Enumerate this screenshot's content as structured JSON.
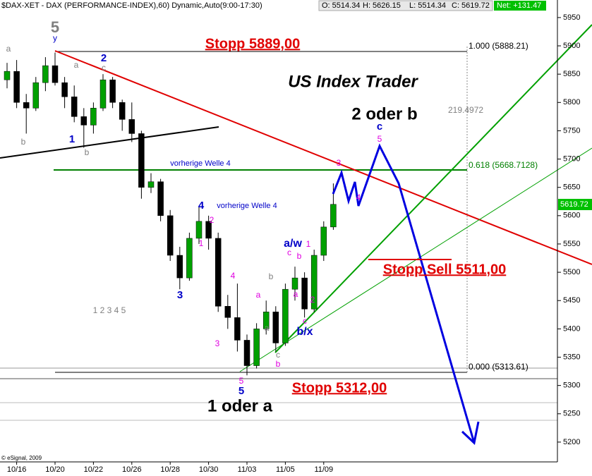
{
  "chart_data": {
    "type": "candlestick",
    "title": "$DAX-XET - DAX (PERFORMANCE-INDEX),60) Dynamic,Auto(9:00-17:30)",
    "header": {
      "open": "O: 5514.34",
      "high": "H: 5626.15",
      "low": "L: 5514.34",
      "close": "C: 5619.72",
      "net": "Net: +131.47"
    },
    "categories": [
      null,
      "10/16",
      null,
      null,
      null,
      "10/20",
      null,
      null,
      null,
      "10/22",
      null,
      null,
      null,
      "10/26",
      null,
      null,
      null,
      "10/28",
      null,
      null,
      null,
      "10/30",
      null,
      null,
      null,
      "11/03",
      null,
      null,
      null,
      "11/05",
      null,
      null,
      null,
      "11/09",
      null
    ],
    "open": [
      5840,
      5855,
      5800,
      5790,
      5835,
      5865,
      5835,
      5810,
      5775,
      5760,
      5790,
      5840,
      5800,
      5770,
      5745,
      5650,
      5660,
      5600,
      5530,
      5490,
      5560,
      5590,
      5560,
      5440,
      5420,
      5380,
      5335,
      5400,
      5430,
      5375,
      5470,
      5490,
      5435,
      5530,
      5580
    ],
    "high": [
      5870,
      5875,
      5815,
      5845,
      5880,
      5888,
      5845,
      5830,
      5790,
      5800,
      5850,
      5845,
      5805,
      5800,
      5750,
      5675,
      5665,
      5610,
      5545,
      5570,
      5615,
      5600,
      5570,
      5460,
      5480,
      5390,
      5410,
      5450,
      5440,
      5480,
      5510,
      5500,
      5540,
      5590,
      5657
    ],
    "low": [
      5825,
      5790,
      5745,
      5785,
      5820,
      5830,
      5790,
      5765,
      5720,
      5745,
      5785,
      5790,
      5750,
      5730,
      5630,
      5640,
      5590,
      5520,
      5470,
      5485,
      5550,
      5540,
      5430,
      5400,
      5360,
      5318,
      5330,
      5390,
      5360,
      5370,
      5450,
      5420,
      5430,
      5520,
      5575
    ],
    "close": [
      5855,
      5800,
      5790,
      5835,
      5865,
      5835,
      5810,
      5775,
      5760,
      5790,
      5840,
      5800,
      5770,
      5745,
      5650,
      5660,
      5600,
      5530,
      5490,
      5560,
      5590,
      5560,
      5440,
      5420,
      5380,
      5335,
      5400,
      5430,
      5375,
      5470,
      5490,
      5435,
      5530,
      5580,
      5620
    ],
    "up_color": "#00a000",
    "down_color": "#000000",
    "ylim": [
      5165,
      5981
    ],
    "yticks": [
      5200,
      5250,
      5300,
      5350,
      5400,
      5450,
      5500,
      5550,
      5600,
      5650,
      5700,
      5750,
      5800,
      5850,
      5900,
      5950
    ],
    "last_price": 5619.72,
    "annotations": [
      "5",
      "y",
      "a",
      "a",
      "2",
      "c",
      "1",
      "b",
      "b",
      "Stopp 5889,00",
      "US Index Trader",
      "2 oder b",
      "c",
      "5",
      "219.4972",
      "vorherige  Welle 4",
      "0.618 (5668.7128)",
      "1.000 (5888.21)",
      "3",
      "4",
      "4",
      "vorherige  Welle 4",
      "2",
      "1",
      "a/w",
      "c",
      "b",
      "1",
      "Stopp Sell 5511,00",
      "3",
      "b",
      "a",
      "4",
      "a",
      "1 2 3 4 5",
      "2",
      "a",
      "c",
      "b/x",
      "3",
      "c",
      "b",
      "0.000 (5313.61)",
      "5",
      "5",
      "Stopp 5312,00",
      "1 oder a",
      "© eSignal, 2009"
    ]
  }
}
